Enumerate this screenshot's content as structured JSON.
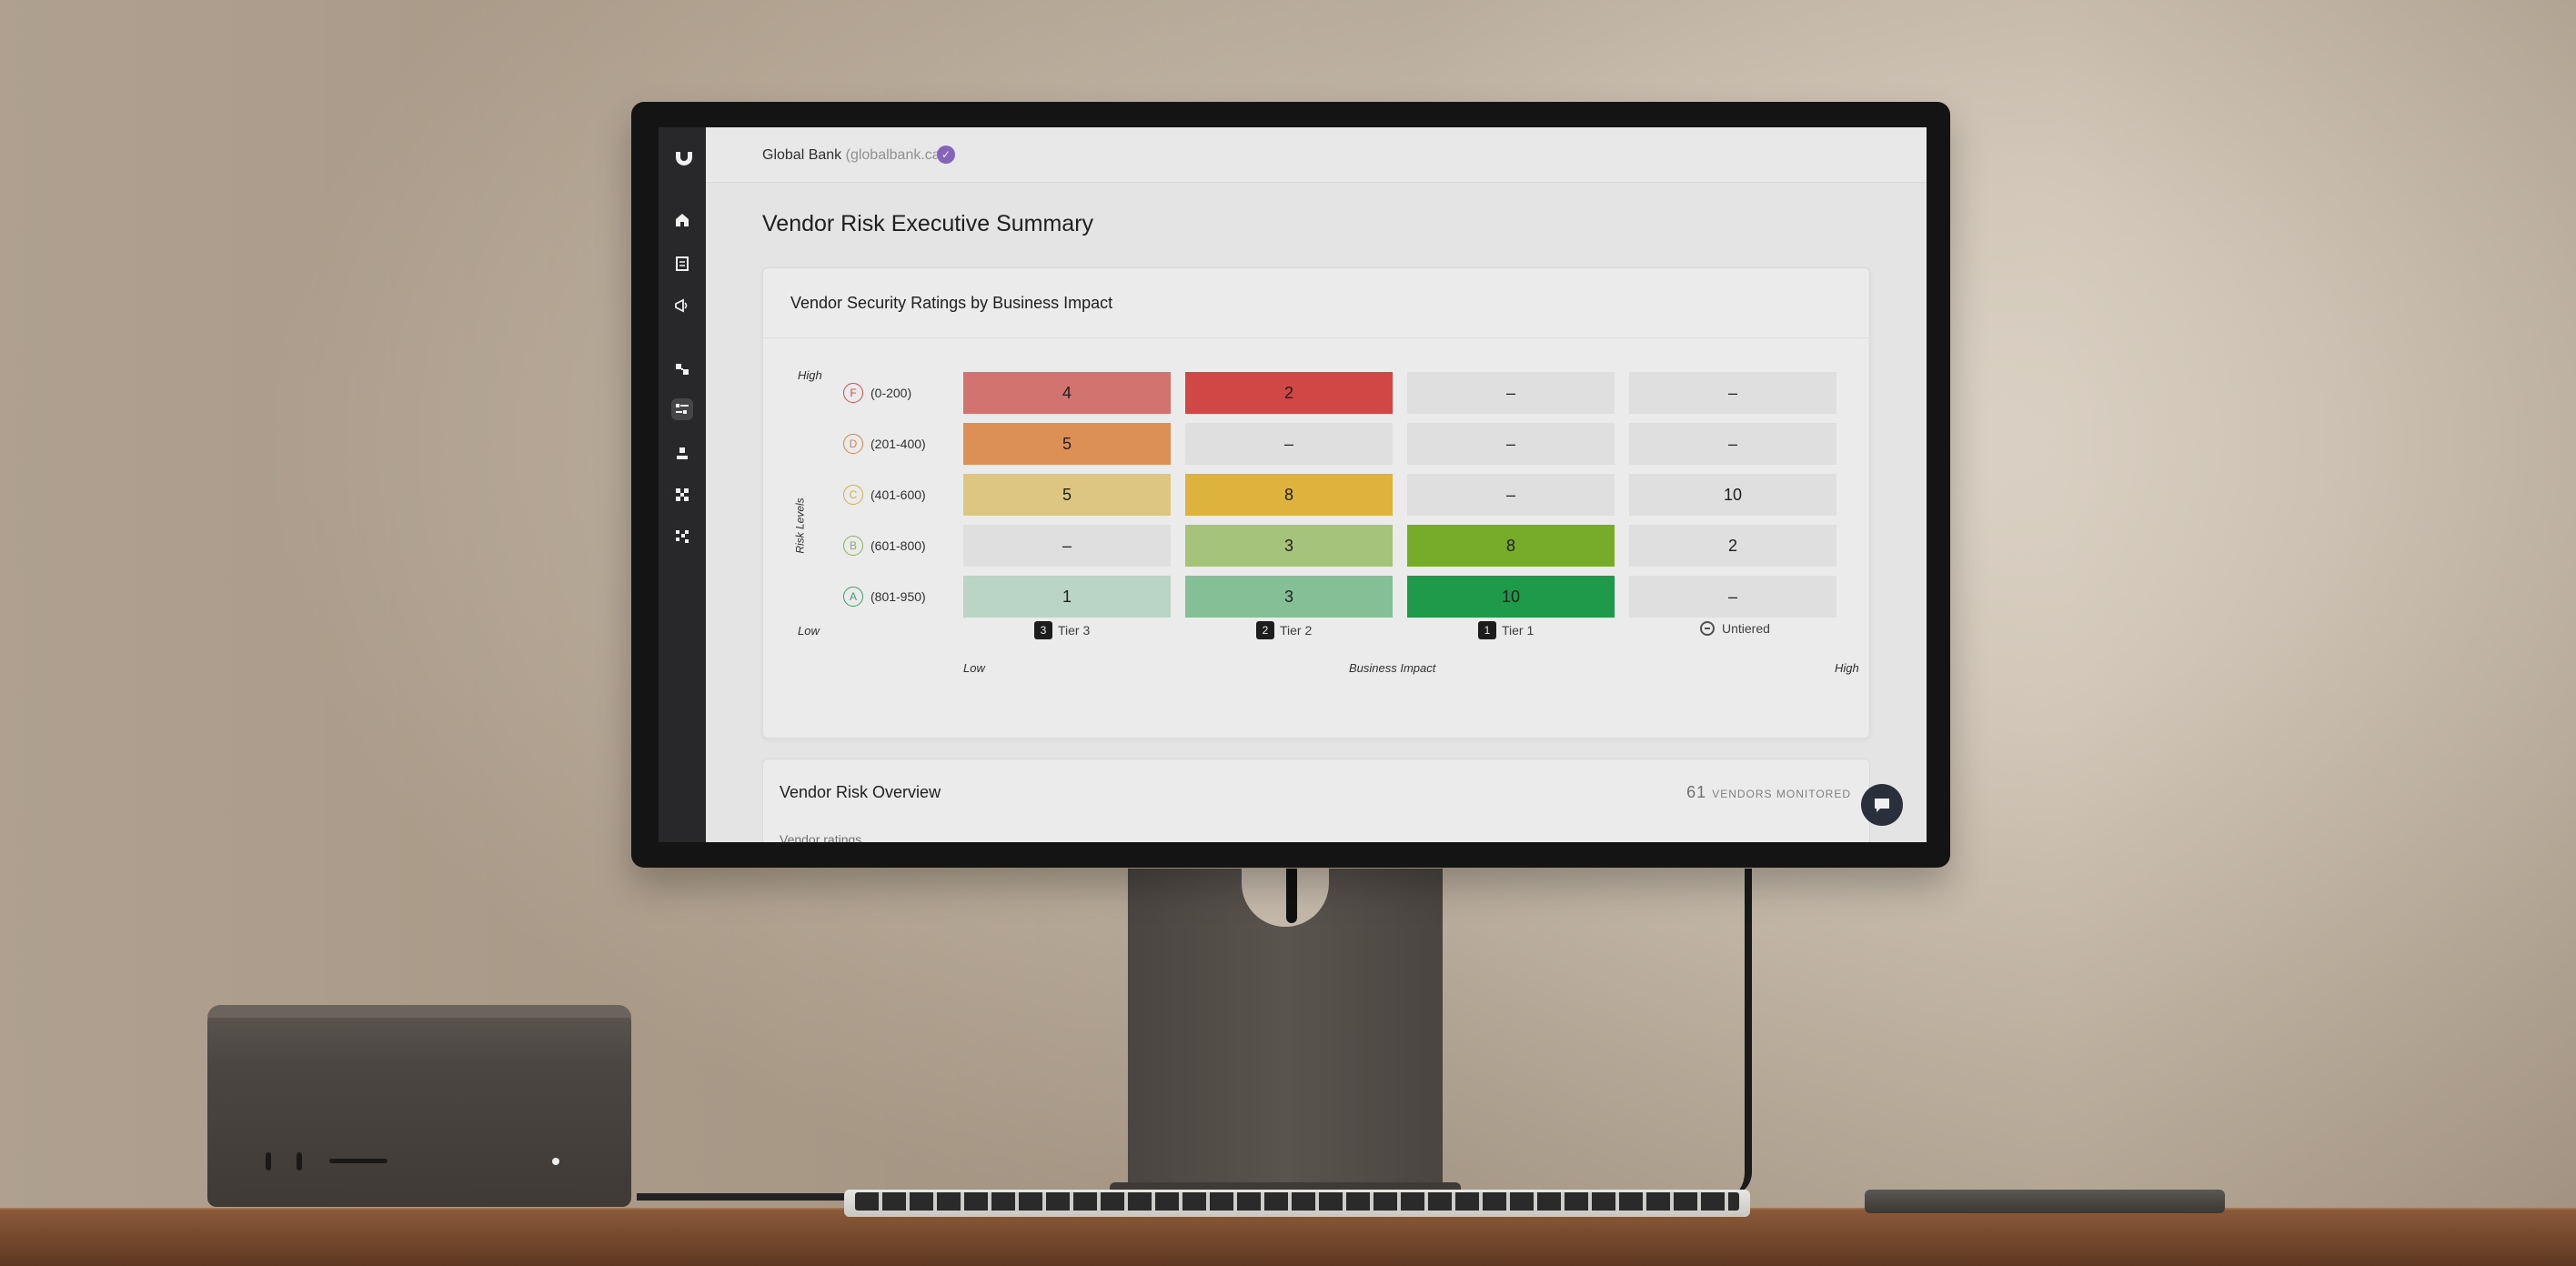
{
  "app": {
    "org_name": "Global Bank",
    "org_domain": "(globalbank.ca)",
    "verified_mark": "✓"
  },
  "sidebar": {
    "items": [
      {
        "name": "home-icon"
      },
      {
        "name": "document-icon"
      },
      {
        "name": "megaphone-icon"
      },
      {
        "name": "vendors-icon"
      },
      {
        "name": "risk-settings-icon",
        "active": true
      },
      {
        "name": "user-icon"
      },
      {
        "name": "network-icon"
      },
      {
        "name": "grid-icon"
      }
    ]
  },
  "page": {
    "title": "Vendor Risk Executive Summary"
  },
  "matrix_card": {
    "title": "Vendor Security Ratings by Business Impact",
    "y_high": "High",
    "y_low": "Low",
    "y_axis_label": "Risk Levels",
    "x_low": "Low",
    "x_axis_label": "Business Impact",
    "x_high": "High",
    "ratings": [
      {
        "grade": "F",
        "range": "(0-200)",
        "color": "#d9534f"
      },
      {
        "grade": "D",
        "range": "(201-400)",
        "color": "#e58a4e"
      },
      {
        "grade": "C",
        "range": "(401-600)",
        "color": "#e1b84a"
      },
      {
        "grade": "B",
        "range": "(601-800)",
        "color": "#8cbf5a"
      },
      {
        "grade": "A",
        "range": "(801-950)",
        "color": "#3aa86a"
      }
    ],
    "tiers": [
      {
        "badge": "3",
        "label": "Tier 3"
      },
      {
        "badge": "2",
        "label": "Tier 2"
      },
      {
        "badge": "1",
        "label": "Tier 1"
      },
      {
        "badge": "",
        "label": "Untiered"
      }
    ],
    "rows": [
      {
        "cells": [
          {
            "v": "4",
            "c": "#e07b78"
          },
          {
            "v": "2",
            "c": "#dd4c4a"
          },
          {
            "v": "–",
            "c": "#ededef"
          },
          {
            "v": "–",
            "c": "#ededef"
          }
        ]
      },
      {
        "cells": [
          {
            "v": "5",
            "c": "#eb9a5c"
          },
          {
            "v": "–",
            "c": "#ededef"
          },
          {
            "v": "–",
            "c": "#ededef"
          },
          {
            "v": "–",
            "c": "#ededef"
          }
        ]
      },
      {
        "cells": [
          {
            "v": "5",
            "c": "#ead38a"
          },
          {
            "v": "8",
            "c": "#ebbf41"
          },
          {
            "v": "–",
            "c": "#ededef"
          },
          {
            "v": "10",
            "c": "#ededef"
          }
        ]
      },
      {
        "cells": [
          {
            "v": "–",
            "c": "#ededef"
          },
          {
            "v": "3",
            "c": "#b1d083"
          },
          {
            "v": "8",
            "c": "#7fb72e"
          },
          {
            "v": "2",
            "c": "#ededef"
          }
        ]
      },
      {
        "cells": [
          {
            "v": "1",
            "c": "#c6e2d2"
          },
          {
            "v": "3",
            "c": "#8ecba0"
          },
          {
            "v": "10",
            "c": "#21a44f"
          },
          {
            "v": "–",
            "c": "#ededef"
          }
        ]
      }
    ]
  },
  "overview_card": {
    "title": "Vendor Risk Overview",
    "count": "61",
    "count_label": "VENDORS MONITORED",
    "sub_label": "Vendor ratings"
  }
}
